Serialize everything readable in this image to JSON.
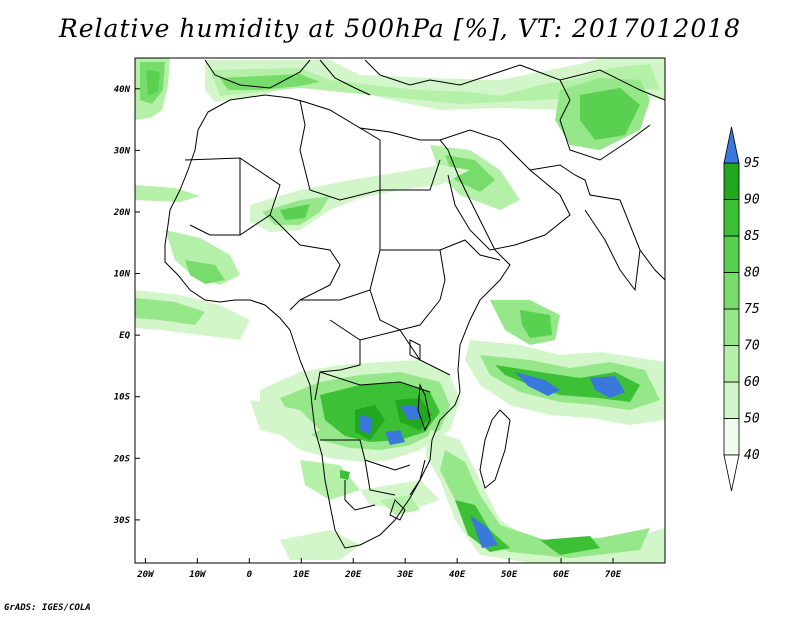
{
  "title": "Relative humidity at 500hPa [%], VT: 2017012018",
  "credit": "GrADS: IGES/COLA",
  "map": {
    "lon_range": [
      -22,
      80
    ],
    "lat_range": [
      -37,
      45
    ],
    "lon_ticks": [
      {
        "value": -20,
        "label": "20W"
      },
      {
        "value": -10,
        "label": "10W"
      },
      {
        "value": 0,
        "label": "0"
      },
      {
        "value": 10,
        "label": "10E"
      },
      {
        "value": 20,
        "label": "20E"
      },
      {
        "value": 30,
        "label": "30E"
      },
      {
        "value": 40,
        "label": "40E"
      },
      {
        "value": 50,
        "label": "50E"
      },
      {
        "value": 60,
        "label": "60E"
      },
      {
        "value": 70,
        "label": "70E"
      }
    ],
    "lat_ticks": [
      {
        "value": 40,
        "label": "40N"
      },
      {
        "value": 30,
        "label": "30N"
      },
      {
        "value": 20,
        "label": "20N"
      },
      {
        "value": 10,
        "label": "10N"
      },
      {
        "value": 0,
        "label": "EQ"
      },
      {
        "value": -10,
        "label": "10S"
      },
      {
        "value": -20,
        "label": "20S"
      },
      {
        "value": -30,
        "label": "30S"
      }
    ],
    "colorbar": {
      "levels": [
        "40",
        "50",
        "60",
        "70",
        "75",
        "80",
        "85",
        "90",
        "95"
      ],
      "colors": [
        "#f0fcee",
        "#d2f6ca",
        "#b4f0a8",
        "#96e68a",
        "#78dc6c",
        "#5ad050",
        "#3cc036",
        "#22a81e",
        "#3a78dc"
      ]
    }
  }
}
